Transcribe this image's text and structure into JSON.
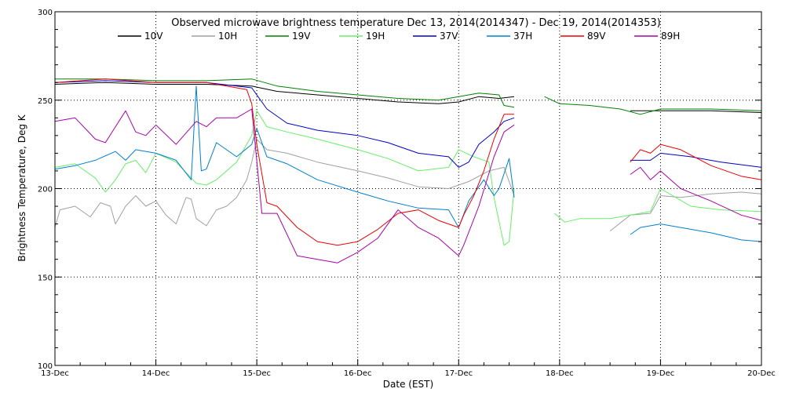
{
  "chart_data": {
    "type": "line",
    "title": "Observed microwave brightness temperature Dec 13, 2014(2014347) - Dec 19, 2014(2014353)",
    "xlabel": "Date (EST)",
    "ylabel": "Brightness Temperature, Deg K",
    "xlim": [
      0,
      7
    ],
    "ylim": [
      100,
      300
    ],
    "x_ticks": [
      {
        "x": 0,
        "label": "13-Dec"
      },
      {
        "x": 1,
        "label": "14-Dec"
      },
      {
        "x": 2,
        "label": "15-Dec"
      },
      {
        "x": 3,
        "label": "16-Dec"
      },
      {
        "x": 4,
        "label": "17-Dec"
      },
      {
        "x": 5,
        "label": "18-Dec"
      },
      {
        "x": 6,
        "label": "19-Dec"
      },
      {
        "x": 7,
        "label": "20-Dec"
      }
    ],
    "y_ticks": [
      100,
      150,
      200,
      250,
      300
    ],
    "grid": "dotted",
    "legend": "top",
    "series": [
      {
        "name": "10V",
        "color": "#000000",
        "segments": [
          [
            [
              0,
              259
            ],
            [
              0.5,
              260
            ],
            [
              1,
              259
            ],
            [
              1.5,
              259
            ],
            [
              1.95,
              258
            ],
            [
              2.2,
              255
            ],
            [
              2.6,
              253
            ],
            [
              3.0,
              251
            ],
            [
              3.4,
              249
            ],
            [
              3.8,
              248
            ],
            [
              4.0,
              249
            ],
            [
              4.2,
              252
            ],
            [
              4.4,
              251
            ],
            [
              4.55,
              252
            ]
          ],
          [
            [
              5.7,
              244
            ],
            [
              6.0,
              244
            ],
            [
              6.5,
              244
            ],
            [
              7,
              243
            ]
          ]
        ]
      },
      {
        "name": "10H",
        "color": "#a0a0a0",
        "segments": [
          [
            [
              0,
              178
            ],
            [
              0.05,
              188
            ],
            [
              0.2,
              190
            ],
            [
              0.35,
              184
            ],
            [
              0.45,
              192
            ],
            [
              0.55,
              190
            ],
            [
              0.6,
              180
            ],
            [
              0.7,
              190
            ],
            [
              0.8,
              196
            ],
            [
              0.9,
              190
            ],
            [
              1.0,
              193
            ],
            [
              1.1,
              185
            ],
            [
              1.2,
              180
            ],
            [
              1.3,
              195
            ],
            [
              1.35,
              194
            ],
            [
              1.4,
              183
            ],
            [
              1.5,
              179
            ],
            [
              1.6,
              188
            ],
            [
              1.7,
              190
            ],
            [
              1.8,
              195
            ],
            [
              1.9,
              205
            ],
            [
              1.95,
              215
            ],
            [
              2.0,
              228
            ],
            [
              2.1,
              222
            ],
            [
              2.3,
              220
            ],
            [
              2.6,
              215
            ],
            [
              3.0,
              210
            ],
            [
              3.3,
              206
            ],
            [
              3.6,
              201
            ],
            [
              3.9,
              200
            ],
            [
              4.1,
              204
            ],
            [
              4.3,
              210
            ],
            [
              4.45,
              212
            ],
            [
              4.55,
              196
            ]
          ],
          [
            [
              5.5,
              176
            ],
            [
              5.7,
              185
            ],
            [
              5.9,
              186
            ],
            [
              6.0,
              196
            ],
            [
              6.2,
              195
            ],
            [
              6.5,
              197
            ],
            [
              6.8,
              198
            ],
            [
              7,
              197
            ]
          ]
        ]
      },
      {
        "name": "19V",
        "color": "#008000",
        "segments": [
          [
            [
              0,
              262
            ],
            [
              0.5,
              262
            ],
            [
              1,
              261
            ],
            [
              1.5,
              261
            ],
            [
              1.95,
              262
            ],
            [
              2.2,
              258
            ],
            [
              2.6,
              255
            ],
            [
              3.0,
              253
            ],
            [
              3.4,
              251
            ],
            [
              3.8,
              250
            ],
            [
              4.0,
              252
            ],
            [
              4.2,
              254
            ],
            [
              4.4,
              253
            ],
            [
              4.45,
              247
            ],
            [
              4.55,
              246
            ]
          ],
          [
            [
              4.85,
              252
            ],
            [
              5.0,
              248
            ],
            [
              5.3,
              247
            ],
            [
              5.6,
              245
            ],
            [
              5.8,
              242
            ],
            [
              6.0,
              245
            ],
            [
              6.5,
              245
            ],
            [
              7,
              244
            ]
          ]
        ]
      },
      {
        "name": "19H",
        "color": "#66ee66",
        "segments": [
          [
            [
              0,
              212
            ],
            [
              0.2,
              214
            ],
            [
              0.4,
              206
            ],
            [
              0.5,
              198
            ],
            [
              0.6,
              205
            ],
            [
              0.7,
              214
            ],
            [
              0.8,
              216
            ],
            [
              0.9,
              209
            ],
            [
              1.0,
              220
            ],
            [
              1.2,
              215
            ],
            [
              1.4,
              203
            ],
            [
              1.5,
              202
            ],
            [
              1.6,
              205
            ],
            [
              1.8,
              215
            ],
            [
              1.95,
              230
            ],
            [
              2.0,
              244
            ],
            [
              2.1,
              235
            ],
            [
              2.3,
              232
            ],
            [
              2.6,
              228
            ],
            [
              3.0,
              222
            ],
            [
              3.3,
              217
            ],
            [
              3.6,
              210
            ],
            [
              3.9,
              212
            ],
            [
              4.0,
              222
            ],
            [
              4.15,
              218
            ],
            [
              4.3,
              215
            ],
            [
              4.35,
              195
            ],
            [
              4.45,
              168
            ],
            [
              4.5,
              170
            ],
            [
              4.55,
              200
            ]
          ],
          [
            [
              4.95,
              186
            ],
            [
              5.05,
              181
            ],
            [
              5.2,
              183
            ],
            [
              5.5,
              183
            ],
            [
              5.7,
              185
            ],
            [
              5.9,
              187
            ],
            [
              6.0,
              200
            ],
            [
              6.3,
              190
            ],
            [
              6.6,
              188
            ],
            [
              7,
              187
            ]
          ]
        ]
      },
      {
        "name": "37V",
        "color": "#0000cc",
        "segments": [
          [
            [
              0,
              260
            ],
            [
              0.5,
              261
            ],
            [
              1,
              260
            ],
            [
              1.5,
              260
            ],
            [
              1.95,
              257
            ],
            [
              2.1,
              245
            ],
            [
              2.3,
              237
            ],
            [
              2.6,
              233
            ],
            [
              3.0,
              230
            ],
            [
              3.3,
              226
            ],
            [
              3.6,
              220
            ],
            [
              3.9,
              218
            ],
            [
              4.0,
              212
            ],
            [
              4.1,
              215
            ],
            [
              4.2,
              225
            ],
            [
              4.35,
              232
            ],
            [
              4.45,
              238
            ],
            [
              4.55,
              240
            ]
          ],
          [
            [
              5.7,
              216
            ],
            [
              5.9,
              216
            ],
            [
              6.0,
              220
            ],
            [
              6.3,
              218
            ],
            [
              6.6,
              215
            ],
            [
              7,
              212
            ]
          ]
        ]
      },
      {
        "name": "37H",
        "color": "#0080d0",
        "segments": [
          [
            [
              0,
              211
            ],
            [
              0.2,
              213
            ],
            [
              0.4,
              216
            ],
            [
              0.6,
              221
            ],
            [
              0.7,
              216
            ],
            [
              0.8,
              222
            ],
            [
              1.0,
              220
            ],
            [
              1.2,
              216
            ],
            [
              1.35,
              205
            ],
            [
              1.4,
              258
            ],
            [
              1.45,
              210
            ],
            [
              1.5,
              211
            ],
            [
              1.6,
              226
            ],
            [
              1.8,
              218
            ],
            [
              1.95,
              225
            ],
            [
              2.0,
              234
            ],
            [
              2.1,
              218
            ],
            [
              2.3,
              214
            ],
            [
              2.6,
              205
            ],
            [
              3.0,
              198
            ],
            [
              3.3,
              193
            ],
            [
              3.6,
              189
            ],
            [
              3.9,
              188
            ],
            [
              4.0,
              178
            ],
            [
              4.1,
              193
            ],
            [
              4.25,
              205
            ],
            [
              4.35,
              196
            ],
            [
              4.4,
              200
            ],
            [
              4.5,
              217
            ],
            [
              4.55,
              195
            ]
          ],
          [
            [
              5.7,
              174
            ],
            [
              5.8,
              178
            ],
            [
              6.0,
              180
            ],
            [
              6.2,
              178
            ],
            [
              6.5,
              175
            ],
            [
              6.8,
              171
            ],
            [
              7,
              170
            ]
          ]
        ]
      },
      {
        "name": "89V",
        "color": "#ee0000",
        "segments": [
          [
            [
              0,
              260
            ],
            [
              0.5,
              262
            ],
            [
              1,
              260
            ],
            [
              1.5,
              260
            ],
            [
              1.9,
              256
            ],
            [
              1.95,
              248
            ],
            [
              2.0,
              225
            ],
            [
              2.1,
              192
            ],
            [
              2.2,
              190
            ],
            [
              2.4,
              178
            ],
            [
              2.6,
              170
            ],
            [
              2.8,
              168
            ],
            [
              3.0,
              170
            ],
            [
              3.2,
              177
            ],
            [
              3.4,
              186
            ],
            [
              3.6,
              188
            ],
            [
              3.8,
              182
            ],
            [
              4.0,
              178
            ],
            [
              4.05,
              185
            ],
            [
              4.15,
              196
            ],
            [
              4.25,
              210
            ],
            [
              4.35,
              228
            ],
            [
              4.45,
              242
            ],
            [
              4.55,
              242
            ]
          ],
          [
            [
              5.7,
              215
            ],
            [
              5.8,
              222
            ],
            [
              5.9,
              220
            ],
            [
              6.0,
              225
            ],
            [
              6.2,
              222
            ],
            [
              6.5,
              213
            ],
            [
              6.8,
              207
            ],
            [
              7,
              205
            ]
          ]
        ]
      },
      {
        "name": "89H",
        "color": "#aa00aa",
        "segments": [
          [
            [
              0,
              238
            ],
            [
              0.2,
              240
            ],
            [
              0.4,
              228
            ],
            [
              0.5,
              226
            ],
            [
              0.6,
              235
            ],
            [
              0.7,
              244
            ],
            [
              0.8,
              232
            ],
            [
              0.9,
              230
            ],
            [
              1.0,
              236
            ],
            [
              1.2,
              225
            ],
            [
              1.4,
              238
            ],
            [
              1.5,
              235
            ],
            [
              1.6,
              240
            ],
            [
              1.8,
              240
            ],
            [
              1.95,
              245
            ],
            [
              2.05,
              186
            ],
            [
              2.2,
              186
            ],
            [
              2.4,
              162
            ],
            [
              2.6,
              160
            ],
            [
              2.8,
              158
            ],
            [
              3.0,
              164
            ],
            [
              3.2,
              172
            ],
            [
              3.4,
              188
            ],
            [
              3.6,
              178
            ],
            [
              3.8,
              172
            ],
            [
              4.0,
              162
            ],
            [
              4.05,
              168
            ],
            [
              4.2,
              190
            ],
            [
              4.35,
              218
            ],
            [
              4.45,
              232
            ],
            [
              4.55,
              236
            ]
          ],
          [
            [
              5.7,
              208
            ],
            [
              5.8,
              212
            ],
            [
              5.9,
              205
            ],
            [
              6.0,
              210
            ],
            [
              6.2,
              200
            ],
            [
              6.5,
              193
            ],
            [
              6.8,
              185
            ],
            [
              7,
              182
            ]
          ]
        ]
      }
    ]
  }
}
